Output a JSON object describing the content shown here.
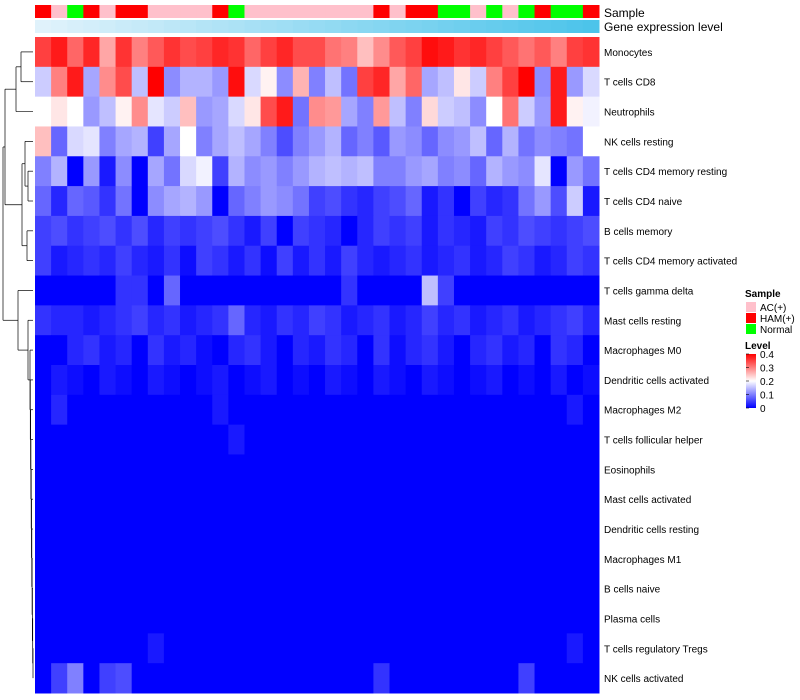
{
  "chart_data": {
    "type": "heatmap",
    "title": "",
    "annotation_tracks": [
      "Sample",
      "Gene expression level"
    ],
    "rows": [
      "Monocytes",
      "T cells CD8",
      "Neutrophils",
      "NK cells resting",
      "T cells CD4 memory resting",
      "T cells CD4 naive",
      "B cells memory",
      "T cells CD4 memory activated",
      "T cells gamma delta",
      "Mast cells resting",
      "Macrophages M0",
      "Dendritic cells activated",
      "Macrophages M2",
      "T cells follicular helper",
      "Eosinophils",
      "Mast cells activated",
      "Dendritic cells resting",
      "Macrophages M1",
      "B cells naive",
      "Plasma cells",
      "T cells regulatory  Tregs",
      "NK cells activated"
    ],
    "sample_groups": [
      "HAM(+)",
      "AC(+)",
      "Normal",
      "HAM(+)",
      "AC(+)",
      "HAM(+)",
      "HAM(+)",
      "AC(+)",
      "AC(+)",
      "AC(+)",
      "AC(+)",
      "HAM(+)",
      "Normal",
      "AC(+)",
      "AC(+)",
      "AC(+)",
      "AC(+)",
      "AC(+)",
      "AC(+)",
      "AC(+)",
      "AC(+)",
      "HAM(+)",
      "AC(+)",
      "HAM(+)",
      "HAM(+)",
      "Normal",
      "Normal",
      "AC(+)",
      "Normal",
      "AC(+)",
      "Normal",
      "HAM(+)",
      "Normal",
      "Normal",
      "HAM(+)"
    ],
    "values": [
      [
        0.35,
        0.38,
        0.32,
        0.37,
        0.27,
        0.36,
        0.3,
        0.33,
        0.36,
        0.34,
        0.35,
        0.37,
        0.36,
        0.32,
        0.35,
        0.37,
        0.34,
        0.34,
        0.31,
        0.3,
        0.25,
        0.29,
        0.33,
        0.35,
        0.39,
        0.38,
        0.36,
        0.37,
        0.35,
        0.33,
        0.31,
        0.33,
        0.3,
        0.35,
        0.36
      ],
      [
        0.16,
        0.3,
        0.38,
        0.13,
        0.29,
        0.34,
        0.15,
        0.4,
        0.11,
        0.14,
        0.14,
        0.12,
        0.39,
        0.17,
        0.21,
        0.11,
        0.26,
        0.1,
        0.15,
        0.09,
        0.35,
        0.37,
        0.27,
        0.32,
        0.13,
        0.15,
        0.22,
        0.16,
        0.3,
        0.35,
        0.4,
        0.11,
        0.38,
        0.12,
        0.17
      ],
      [
        0.2,
        0.22,
        0.2,
        0.12,
        0.15,
        0.21,
        0.29,
        0.18,
        0.16,
        0.25,
        0.12,
        0.13,
        0.17,
        0.22,
        0.34,
        0.38,
        0.09,
        0.29,
        0.28,
        0.13,
        0.1,
        0.28,
        0.15,
        0.1,
        0.23,
        0.16,
        0.15,
        0.11,
        0.2,
        0.31,
        0.16,
        0.12,
        0.38,
        0.21,
        0.19
      ],
      [
        0.25,
        0.08,
        0.17,
        0.18,
        0.1,
        0.13,
        0.14,
        0.05,
        0.13,
        0.2,
        0.1,
        0.13,
        0.15,
        0.13,
        0.1,
        0.06,
        0.1,
        0.12,
        0.14,
        0.08,
        0.1,
        0.07,
        0.12,
        0.11,
        0.08,
        0.11,
        0.12,
        0.15,
        0.08,
        0.14,
        0.09,
        0.11,
        0.1,
        0.09,
        0.2
      ],
      [
        0.1,
        0.14,
        0.0,
        0.12,
        0.02,
        0.11,
        0.0,
        0.13,
        0.09,
        0.17,
        0.19,
        0.05,
        0.14,
        0.11,
        0.12,
        0.1,
        0.12,
        0.14,
        0.15,
        0.14,
        0.15,
        0.1,
        0.1,
        0.12,
        0.13,
        0.1,
        0.11,
        0.08,
        0.14,
        0.12,
        0.11,
        0.18,
        0.0,
        0.12,
        0.09
      ],
      [
        0.08,
        0.03,
        0.08,
        0.07,
        0.04,
        0.09,
        0.0,
        0.11,
        0.13,
        0.14,
        0.12,
        0.0,
        0.08,
        0.1,
        0.12,
        0.11,
        0.09,
        0.05,
        0.06,
        0.04,
        0.03,
        0.05,
        0.06,
        0.08,
        0.02,
        0.04,
        0.0,
        0.05,
        0.03,
        0.04,
        0.09,
        0.12,
        0.06,
        0.16,
        0.02
      ],
      [
        0.05,
        0.06,
        0.04,
        0.05,
        0.06,
        0.04,
        0.06,
        0.03,
        0.05,
        0.04,
        0.05,
        0.06,
        0.04,
        0.02,
        0.05,
        0.0,
        0.05,
        0.04,
        0.03,
        0.0,
        0.03,
        0.05,
        0.04,
        0.05,
        0.02,
        0.04,
        0.03,
        0.02,
        0.05,
        0.04,
        0.06,
        0.05,
        0.04,
        0.05,
        0.06
      ],
      [
        0.05,
        0.02,
        0.03,
        0.04,
        0.03,
        0.05,
        0.03,
        0.02,
        0.04,
        0.01,
        0.05,
        0.04,
        0.02,
        0.04,
        0.01,
        0.05,
        0.02,
        0.04,
        0.02,
        0.05,
        0.03,
        0.02,
        0.03,
        0.04,
        0.02,
        0.03,
        0.04,
        0.02,
        0.03,
        0.05,
        0.04,
        0.02,
        0.03,
        0.05,
        0.04
      ],
      [
        0.0,
        0.0,
        0.0,
        0.0,
        0.0,
        0.04,
        0.04,
        0.0,
        0.08,
        0.0,
        0.0,
        0.0,
        0.0,
        0.0,
        0.0,
        0.0,
        0.0,
        0.0,
        0.0,
        0.04,
        0.0,
        0.0,
        0.0,
        0.0,
        0.15,
        0.05,
        0.0,
        0.0,
        0.0,
        0.0,
        0.0,
        0.0,
        0.0,
        0.0,
        0.0
      ],
      [
        0.04,
        0.03,
        0.03,
        0.02,
        0.03,
        0.04,
        0.05,
        0.03,
        0.04,
        0.02,
        0.03,
        0.04,
        0.08,
        0.03,
        0.02,
        0.04,
        0.03,
        0.05,
        0.04,
        0.02,
        0.03,
        0.04,
        0.02,
        0.03,
        0.05,
        0.03,
        0.04,
        0.02,
        0.03,
        0.04,
        0.02,
        0.03,
        0.04,
        0.05,
        0.03
      ],
      [
        0.0,
        0.0,
        0.03,
        0.04,
        0.02,
        0.03,
        0.0,
        0.04,
        0.02,
        0.03,
        0.01,
        0.0,
        0.03,
        0.04,
        0.02,
        0.0,
        0.03,
        0.02,
        0.04,
        0.03,
        0.0,
        0.04,
        0.01,
        0.03,
        0.04,
        0.02,
        0.0,
        0.03,
        0.04,
        0.02,
        0.03,
        0.0,
        0.04,
        0.03,
        0.0
      ],
      [
        0.0,
        0.02,
        0.01,
        0.0,
        0.02,
        0.01,
        0.0,
        0.02,
        0.01,
        0.0,
        0.01,
        0.02,
        0.0,
        0.01,
        0.02,
        0.0,
        0.01,
        0.0,
        0.02,
        0.01,
        0.0,
        0.02,
        0.01,
        0.0,
        0.02,
        0.01,
        0.0,
        0.01,
        0.02,
        0.0,
        0.01,
        0.0,
        0.02,
        0.0,
        0.01
      ],
      [
        0.0,
        0.03,
        0.0,
        0.0,
        0.0,
        0.0,
        0.0,
        0.0,
        0.0,
        0.0,
        0.0,
        0.02,
        0.0,
        0.0,
        0.0,
        0.0,
        0.0,
        0.0,
        0.0,
        0.0,
        0.0,
        0.0,
        0.0,
        0.0,
        0.0,
        0.0,
        0.0,
        0.0,
        0.0,
        0.0,
        0.0,
        0.0,
        0.0,
        0.02,
        0.0
      ],
      [
        0.0,
        0.0,
        0.0,
        0.0,
        0.0,
        0.0,
        0.0,
        0.0,
        0.0,
        0.0,
        0.0,
        0.0,
        0.02,
        0.0,
        0.0,
        0.0,
        0.0,
        0.0,
        0.0,
        0.0,
        0.0,
        0.0,
        0.0,
        0.0,
        0.0,
        0.0,
        0.0,
        0.0,
        0.0,
        0.0,
        0.0,
        0.0,
        0.0,
        0.0,
        0.0
      ],
      [
        0.0,
        0.0,
        0.0,
        0.0,
        0.0,
        0.0,
        0.0,
        0.0,
        0.0,
        0.0,
        0.0,
        0.0,
        0.0,
        0.0,
        0.0,
        0.0,
        0.0,
        0.0,
        0.0,
        0.0,
        0.0,
        0.0,
        0.0,
        0.0,
        0.0,
        0.0,
        0.0,
        0.0,
        0.0,
        0.0,
        0.0,
        0.0,
        0.0,
        0.0,
        0.0
      ],
      [
        0.0,
        0.0,
        0.0,
        0.0,
        0.0,
        0.0,
        0.0,
        0.0,
        0.0,
        0.0,
        0.0,
        0.0,
        0.0,
        0.0,
        0.0,
        0.0,
        0.0,
        0.0,
        0.0,
        0.0,
        0.0,
        0.0,
        0.0,
        0.0,
        0.0,
        0.0,
        0.0,
        0.0,
        0.0,
        0.0,
        0.0,
        0.0,
        0.0,
        0.0,
        0.0
      ],
      [
        0.0,
        0.0,
        0.0,
        0.0,
        0.0,
        0.0,
        0.0,
        0.0,
        0.0,
        0.0,
        0.0,
        0.0,
        0.0,
        0.0,
        0.0,
        0.0,
        0.0,
        0.0,
        0.0,
        0.0,
        0.0,
        0.0,
        0.0,
        0.0,
        0.0,
        0.0,
        0.0,
        0.0,
        0.0,
        0.0,
        0.0,
        0.0,
        0.0,
        0.0,
        0.0
      ],
      [
        0.0,
        0.0,
        0.0,
        0.0,
        0.0,
        0.0,
        0.0,
        0.0,
        0.0,
        0.0,
        0.0,
        0.0,
        0.0,
        0.0,
        0.0,
        0.0,
        0.0,
        0.0,
        0.0,
        0.0,
        0.0,
        0.0,
        0.0,
        0.0,
        0.0,
        0.0,
        0.0,
        0.0,
        0.0,
        0.0,
        0.0,
        0.0,
        0.0,
        0.0,
        0.0
      ],
      [
        0.0,
        0.0,
        0.0,
        0.0,
        0.0,
        0.0,
        0.0,
        0.0,
        0.0,
        0.0,
        0.0,
        0.0,
        0.0,
        0.0,
        0.0,
        0.0,
        0.0,
        0.0,
        0.0,
        0.0,
        0.0,
        0.0,
        0.0,
        0.0,
        0.0,
        0.0,
        0.0,
        0.0,
        0.0,
        0.0,
        0.0,
        0.0,
        0.0,
        0.0,
        0.0
      ],
      [
        0.0,
        0.0,
        0.0,
        0.0,
        0.0,
        0.0,
        0.0,
        0.0,
        0.0,
        0.0,
        0.0,
        0.0,
        0.0,
        0.0,
        0.0,
        0.0,
        0.0,
        0.0,
        0.0,
        0.0,
        0.0,
        0.0,
        0.0,
        0.0,
        0.0,
        0.0,
        0.0,
        0.0,
        0.0,
        0.0,
        0.0,
        0.0,
        0.0,
        0.0,
        0.0
      ],
      [
        0.0,
        0.0,
        0.0,
        0.0,
        0.0,
        0.0,
        0.0,
        0.02,
        0.0,
        0.0,
        0.0,
        0.0,
        0.0,
        0.0,
        0.0,
        0.0,
        0.0,
        0.0,
        0.0,
        0.0,
        0.0,
        0.0,
        0.0,
        0.0,
        0.0,
        0.0,
        0.0,
        0.0,
        0.0,
        0.0,
        0.0,
        0.0,
        0.0,
        0.02,
        0.0
      ],
      [
        0.0,
        0.05,
        0.1,
        0.0,
        0.05,
        0.06,
        0.0,
        0.0,
        0.0,
        0.0,
        0.0,
        0.0,
        0.0,
        0.0,
        0.0,
        0.0,
        0.0,
        0.0,
        0.0,
        0.0,
        0.0,
        0.04,
        0.0,
        0.0,
        0.0,
        0.0,
        0.0,
        0.0,
        0.0,
        0.0,
        0.05,
        0.0,
        0.0,
        0.0,
        0.0
      ]
    ],
    "color_scale": {
      "min": 0,
      "max": 0.4,
      "stops": [
        [
          0,
          "#0000ff"
        ],
        [
          0.2,
          "#ffffff"
        ],
        [
          0.4,
          "#ff0000"
        ]
      ]
    },
    "sample_colors": {
      "AC(+)": "#ffc0cb",
      "HAM(+)": "#ff0000",
      "Normal": "#00ff00"
    },
    "expression_bar": {
      "start_color": "#e0f2fb",
      "end_color": "#4cc4ea"
    },
    "legend": {
      "sample_title": "Sample",
      "sample_entries": [
        "AC(+)",
        "HAM(+)",
        "Normal"
      ],
      "level_title": "Level",
      "level_ticks": [
        "0.4",
        "0.3",
        "0.2",
        "0.1",
        "0"
      ],
      "level_tick_values": [
        0.4,
        0.3,
        0.2,
        0.1,
        0
      ],
      "placement": "right"
    }
  }
}
